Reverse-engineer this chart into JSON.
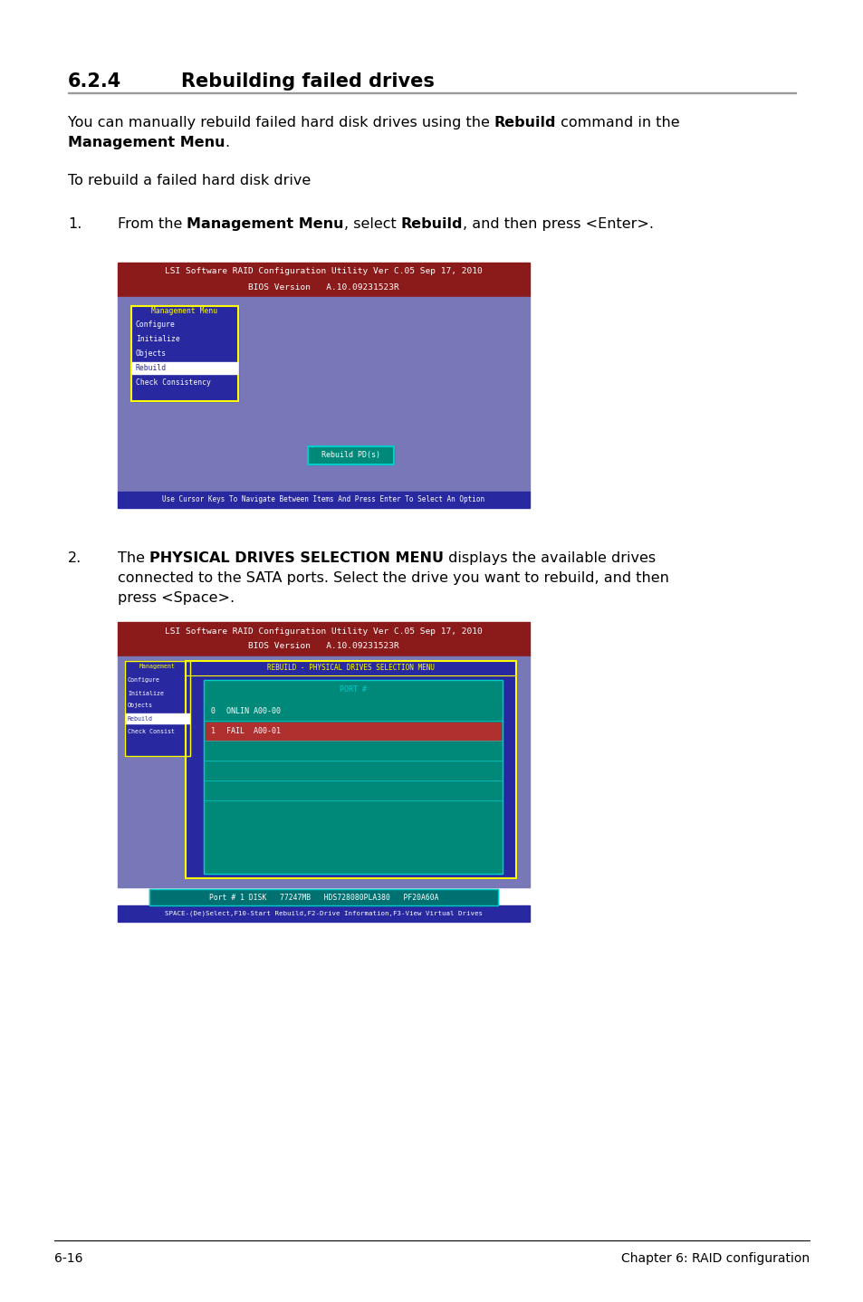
{
  "page_bg": "#ffffff",
  "title_num": "6.2.4",
  "title_text": "Rebuilding failed drives",
  "para1_parts": [
    [
      "You can manually rebuild failed hard disk drives using the ",
      false
    ],
    [
      "Rebuild",
      true
    ],
    [
      " command in the",
      false
    ]
  ],
  "para1_line2_parts": [
    [
      "Management Menu",
      true
    ],
    [
      ".",
      false
    ]
  ],
  "para2": "To rebuild a failed hard disk drive",
  "step1_parts": [
    [
      "From the ",
      false
    ],
    [
      "Management Menu",
      true
    ],
    [
      ", select ",
      false
    ],
    [
      "Rebuild",
      true
    ],
    [
      ", and then press <Enter>.",
      false
    ]
  ],
  "step2_line1_parts": [
    [
      "The ",
      false
    ],
    [
      "PHYSICAL DRIVES SELECTION MENU",
      true
    ],
    [
      " displays the available drives",
      false
    ]
  ],
  "step2_line2": "connected to the SATA ports. Select the drive you want to rebuild, and then",
  "step2_line3": "press <Space>.",
  "screen1_header1": "LSI Software RAID Configuration Utility Ver C.05 Sep 17, 2010",
  "screen1_header2": "BIOS Version   A.10.09231523R",
  "screen1_menu_title": "Management Menu",
  "screen1_menu_items": [
    "Configure",
    "Initialize",
    "Objects",
    "Rebuild",
    "Check Consistency"
  ],
  "screen1_selected": "Rebuild",
  "screen1_popup": "Rebuild PD(s)",
  "screen1_footer": "Use Cursor Keys To Navigate Between Items And Press Enter To Select An Option",
  "screen2_header1": "LSI Software RAID Configuration Utility Ver C.05 Sep 17, 2010",
  "screen2_header2": "BIOS Version   A.10.09231523R",
  "screen2_title": "REBUILD - PHYSICAL DRIVES SELECTION MENU",
  "screen2_menu_items": [
    "Configure",
    "Initialize",
    "Objects",
    "Rebuild",
    "Check Consist"
  ],
  "screen2_selected": "Rebuild",
  "screen2_port_header": "PORT #",
  "screen2_drive0": "ONLIN A00-00",
  "screen2_drive1": "FAIL  A00-01",
  "screen2_footer1": "Port # 1 DISK   77247MB   HDS728080PLA380   PF20A60A",
  "screen2_footer2": "SPACE-(De)Select,F10-Start Rebuild,F2-Drive Information,F3-View Virtual Drives",
  "footer_left": "6-16",
  "footer_right": "Chapter 6: RAID configuration",
  "c_dark_red": "#8B1A1A",
  "c_mid_blue": "#7878B8",
  "c_dark_blue": "#2828A0",
  "c_yellow": "#FFFF00",
  "c_white": "#FFFFFF",
  "c_teal": "#008878",
  "c_cyan": "#00CCCC",
  "c_red_sel": "#B03030",
  "c_green_info": "#007070",
  "c_footer_blue": "#2828A0"
}
